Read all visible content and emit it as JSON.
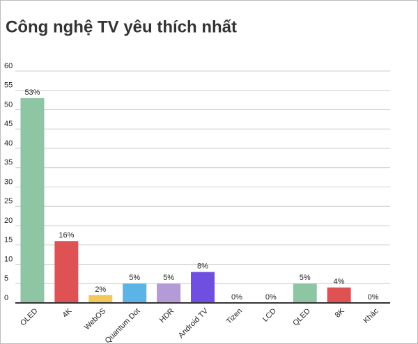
{
  "chart_data": {
    "type": "bar",
    "title": "Công nghệ TV yêu thích nhất",
    "categories": [
      "OLED",
      "4K",
      "WebOS",
      "Quantum Dot",
      "HDR",
      "Android TV",
      "Tizen",
      "LCD",
      "QLED",
      "8K",
      "Khác"
    ],
    "values": [
      53,
      16,
      2,
      5,
      5,
      8,
      0,
      0,
      5,
      4,
      0
    ],
    "value_labels": [
      "53%",
      "16%",
      "2%",
      "5%",
      "5%",
      "8%",
      "0%",
      "0%",
      "5%",
      "4%",
      "0%"
    ],
    "colors": [
      "#8ec6a4",
      "#df5253",
      "#f2c85b",
      "#5bb3e6",
      "#b49ad6",
      "#6e4fe0",
      "#8ec6a4",
      "#8ec6a4",
      "#8ec6a4",
      "#df5253",
      "#8ec6a4"
    ],
    "ylim": [
      0,
      60
    ],
    "yticks": [
      0,
      5,
      10,
      15,
      20,
      25,
      30,
      35,
      40,
      45,
      50,
      55,
      60
    ],
    "grid": true
  }
}
